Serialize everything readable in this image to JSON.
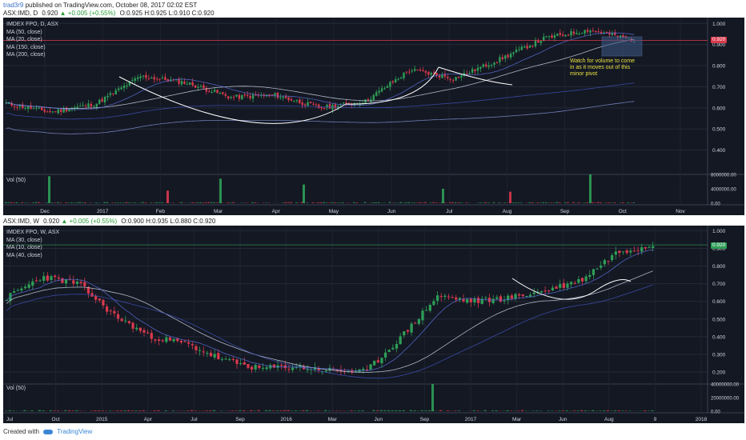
{
  "header": {
    "author": "trad3r9",
    "published_text": "published on TradingView.com, October 08, 2017 02:02 EST"
  },
  "chart1": {
    "ticker_line": {
      "symbol": "ASX:IMD, D",
      "last": "0.920",
      "change": "+0.005 (+0.55%)",
      "open": "O:0.925",
      "high": "H:0.925",
      "low": "L:0.910",
      "close": "C:0.920"
    },
    "legend": [
      "IMDEX FPO, D, ASX",
      "MA (50, close)",
      "MA (20, close)",
      "MA (150, close)",
      "MA (200, close)"
    ],
    "volume_label": "Vol (50)",
    "annotation": "Watch for volume to come in as it moves out of this minor pivot",
    "price_tag": "0.920",
    "y_ticks": [
      "1.000",
      "0.900",
      "0.800",
      "0.700",
      "0.600",
      "0.500",
      "0.400"
    ],
    "vol_ticks": [
      "8000000.00",
      "4000000.00",
      "0.00"
    ],
    "x_ticks": [
      "Dec",
      "2017",
      "Feb",
      "Mar",
      "Apr",
      "May",
      "Jun",
      "Jul",
      "Aug",
      "Sep",
      "Oct",
      "Nov"
    ]
  },
  "chart2": {
    "ticker_line": {
      "symbol": "ASX:IMD, W",
      "last": "0.920",
      "change": "+0.005 (+0.55%)",
      "open": "O:0.900",
      "high": "H:0.935",
      "low": "L:0.880",
      "close": "C:0.920"
    },
    "legend": [
      "IMDEX FPO, W, ASX",
      "MA (30, close)",
      "MA (10, close)",
      "MA (40, close)"
    ],
    "volume_label": "Vol (50)",
    "price_tag": "0.920",
    "y_ticks": [
      "1.000",
      "0.900",
      "0.800",
      "0.700",
      "0.600",
      "0.500",
      "0.400",
      "0.300",
      "0.200"
    ],
    "vol_ticks": [
      "40000000.00",
      "20000000.00",
      "0.00"
    ],
    "x_ticks": [
      "Jul",
      "Oct",
      "2015",
      "Apr",
      "Jul",
      "Sep",
      "2016",
      "Mar",
      "Jun",
      "Sep",
      "2017",
      "Mar",
      "Jun",
      "Aug",
      "9",
      "2018"
    ]
  },
  "footer": {
    "created_with": "Created with",
    "brand": "TradingView"
  },
  "chart_data": [
    {
      "type": "candlestick",
      "title": "IMDEX FPO, D, ASX",
      "timeframe": "daily",
      "ylim": [
        0.3,
        1.02
      ],
      "grid": true,
      "legend_position": "top-left",
      "colors": {
        "up": "#2e9e57",
        "down": "#d8394c",
        "background": "#141823"
      },
      "x_ticks": [
        "Dec",
        "2017",
        "Feb",
        "Mar",
        "Apr",
        "May",
        "Jun",
        "Jul",
        "Aug",
        "Sep",
        "Oct",
        "Nov"
      ],
      "price_path": [
        {
          "x": "Nov",
          "y": 0.62
        },
        {
          "x": "Dec",
          "y": 0.58
        },
        {
          "x": "2017",
          "y": 0.62
        },
        {
          "x": "Jan-mid",
          "y": 0.75
        },
        {
          "x": "Feb",
          "y": 0.72
        },
        {
          "x": "Mar",
          "y": 0.65
        },
        {
          "x": "Apr",
          "y": 0.66
        },
        {
          "x": "May",
          "y": 0.6
        },
        {
          "x": "Jun",
          "y": 0.63
        },
        {
          "x": "Jul",
          "y": 0.78
        },
        {
          "x": "Aug",
          "y": 0.74
        },
        {
          "x": "Aug-late",
          "y": 0.83
        },
        {
          "x": "Sep",
          "y": 0.93
        },
        {
          "x": "Sep-late",
          "y": 0.97
        },
        {
          "x": "Oct",
          "y": 0.92
        }
      ],
      "volume_spikes": [
        {
          "x": "Dec",
          "value": 7500000
        },
        {
          "x": "Feb",
          "value": 3500000
        },
        {
          "x": "Mar",
          "value": 6800000
        },
        {
          "x": "May",
          "value": 5200000
        },
        {
          "x": "Jul",
          "value": 4000000
        },
        {
          "x": "Aug",
          "value": 3200000
        },
        {
          "x": "Sep",
          "value": 8000000
        }
      ],
      "last_price": 0.92,
      "annotation": "Watch for volume to come in as it moves out of this minor pivot"
    },
    {
      "type": "candlestick",
      "title": "IMDEX FPO, W, ASX",
      "timeframe": "weekly",
      "ylim": [
        0.15,
        1.02
      ],
      "grid": true,
      "legend_position": "top-left",
      "colors": {
        "up": "#2e9e57",
        "down": "#d8394c",
        "background": "#141823"
      },
      "x_ticks": [
        "Jul",
        "Oct",
        "2015",
        "Apr",
        "Jul",
        "Sep",
        "2016",
        "Mar",
        "Jun",
        "Sep",
        "2017",
        "Mar",
        "Jun",
        "Aug",
        "9",
        "2018"
      ],
      "price_path": [
        {
          "x": "Jul",
          "y": 0.62
        },
        {
          "x": "Aug",
          "y": 0.74
        },
        {
          "x": "Oct",
          "y": 0.7
        },
        {
          "x": "Dec",
          "y": 0.52
        },
        {
          "x": "2015",
          "y": 0.4
        },
        {
          "x": "Apr",
          "y": 0.36
        },
        {
          "x": "Jul",
          "y": 0.27
        },
        {
          "x": "Sep",
          "y": 0.22
        },
        {
          "x": "2016",
          "y": 0.23
        },
        {
          "x": "Mar",
          "y": 0.21
        },
        {
          "x": "Jun",
          "y": 0.2
        },
        {
          "x": "Jul",
          "y": 0.4
        },
        {
          "x": "Sep",
          "y": 0.63
        },
        {
          "x": "Dec",
          "y": 0.6
        },
        {
          "x": "2017",
          "y": 0.62
        },
        {
          "x": "Mar",
          "y": 0.66
        },
        {
          "x": "Jun",
          "y": 0.72
        },
        {
          "x": "Aug",
          "y": 0.88
        },
        {
          "x": "9",
          "y": 0.92
        }
      ],
      "volume_spikes": [
        {
          "x": "Sep",
          "value": 40000000
        }
      ],
      "last_price": 0.92
    }
  ]
}
